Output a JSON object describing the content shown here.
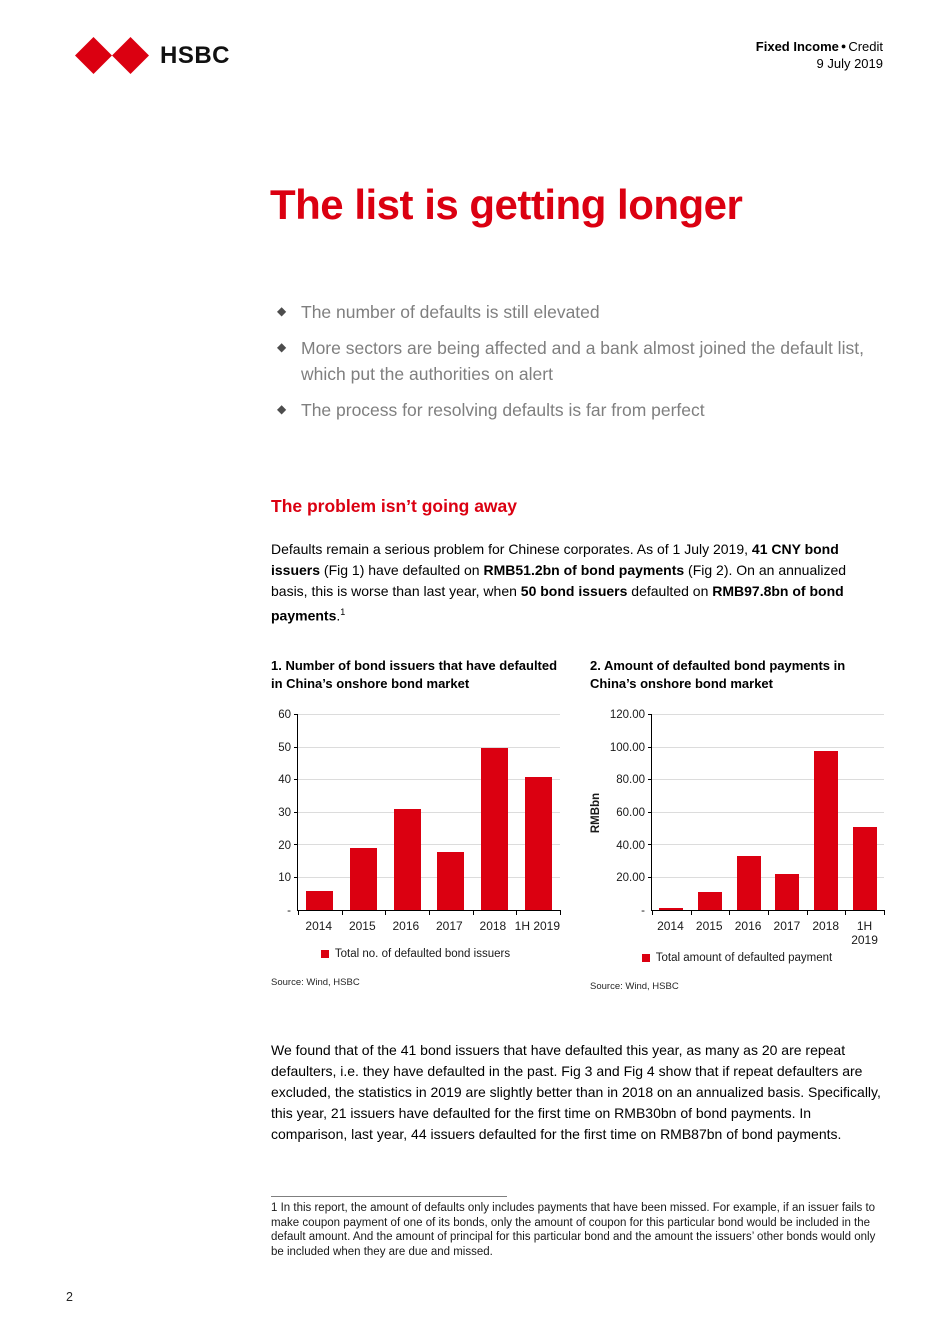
{
  "header": {
    "logo_text": "HSBC",
    "doc_type_bold": "Fixed Income",
    "doc_type_separator": "●",
    "doc_type_regular": "Credit",
    "date": "9 July 2019"
  },
  "title": "The list is getting longer",
  "bullets": [
    "The number of defaults is still elevated",
    "More sectors are being affected and a bank almost joined the default list, which put the authorities on alert",
    "The process for resolving defaults is far from perfect"
  ],
  "section": {
    "heading": "The problem isn’t going away",
    "paragraph1_runs": [
      {
        "t": "Defaults remain a serious problem for Chinese corporates. As of 1 July 2019, "
      },
      {
        "t": "41 CNY bond issuers",
        "b": true
      },
      {
        "t": " (Fig 1) have defaulted on "
      },
      {
        "t": "RMB51.2bn of bond payments",
        "b": true
      },
      {
        "t": " (Fig 2). On an annualized basis, this is worse than last year, when "
      },
      {
        "t": "50 bond issuers",
        "b": true
      },
      {
        "t": " defaulted on "
      },
      {
        "t": "RMB97.8bn of bond payments",
        "b": true
      },
      {
        "t": "."
      },
      {
        "t": "1",
        "sup": true
      }
    ],
    "paragraph2": "We found that of the 41 bond issuers that have defaulted this year, as many as 20 are repeat defaulters, i.e. they have defaulted in the past. Fig 3 and Fig 4 show that if repeat defaulters are excluded, the statistics in 2019 are slightly better than in 2018 on an annualized basis. Specifically, this year, 21 issuers have defaulted for the first time on RMB30bn of bond payments. In comparison, last year, 44 issuers defaulted for the first time on RMB87bn of bond payments."
  },
  "chart_data": [
    {
      "type": "bar",
      "title": "1. Number of bond issuers that have defaulted in China’s onshore bond market",
      "categories": [
        "2014",
        "2015",
        "2016",
        "2017",
        "2018",
        "1H 2019"
      ],
      "values": [
        6,
        19,
        31,
        18,
        50,
        41
      ],
      "ylim": [
        0,
        60
      ],
      "ytick_step": 10,
      "ytick_labels": [
        "-",
        "10",
        "20",
        "30",
        "40",
        "50",
        "60"
      ],
      "ylabel": "",
      "grid": true,
      "legend_position": "bottom",
      "legend": "Total no. of defaulted bond issuers",
      "source": "Source: Wind, HSBC",
      "bar_color": "#db0011"
    },
    {
      "type": "bar",
      "title": "2. Amount of defaulted bond payments in China’s onshore bond market",
      "categories": [
        "2014",
        "2015",
        "2016",
        "2017",
        "2018",
        "1H 2019"
      ],
      "values": [
        1.3,
        11,
        33,
        22,
        97.8,
        51.2
      ],
      "ylim": [
        0,
        120
      ],
      "ytick_step": 20,
      "ytick_labels": [
        "-",
        "20.00",
        "40.00",
        "60.00",
        "80.00",
        "100.00",
        "120.00"
      ],
      "ylabel": "RMBbn",
      "grid": true,
      "legend_position": "bottom",
      "legend": "Total amount of defaulted payment",
      "source": "Source: Wind, HSBC",
      "bar_color": "#db0011"
    }
  ],
  "footnote": {
    "text": "1 In this report, the amount of defaults only includes payments that have been missed. For example, if an issuer fails to make coupon payment of one of its bonds, only the amount of coupon for this particular bond would be included in the default amount. And the amount of principal for this particular bond and the amount the issuers’ other bonds would only be included when they are due and missed."
  },
  "page": {
    "number": "2"
  },
  "colors": {
    "brand_red": "#db0011",
    "bullet_gray": "#7f7f7f",
    "gridline_gray": "#dcdcdc"
  }
}
